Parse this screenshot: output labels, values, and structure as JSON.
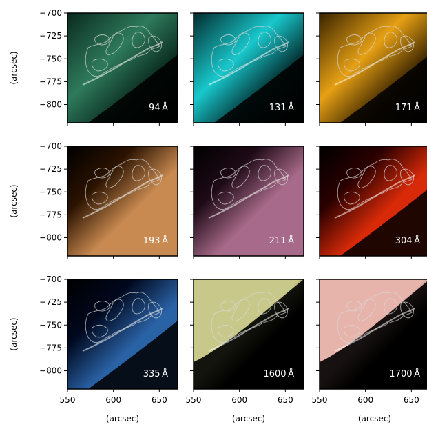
{
  "figure": {
    "y_axis_label": "(arcsec)",
    "x_axis_label": "(arcsec)",
    "y_ticks": [
      "−700",
      "−725",
      "−750",
      "−775",
      "−800"
    ],
    "x_ticks": [
      "550",
      "600",
      "650"
    ],
    "contour_color": "#d8d8d8"
  },
  "panels": [
    {
      "wavelength": "94",
      "unit": "Å",
      "colors": [
        "#0a2a1f",
        "#2e7a5c",
        "#000000"
      ]
    },
    {
      "wavelength": "131",
      "unit": "Å",
      "colors": [
        "#042c2e",
        "#18c8cc",
        "#000000"
      ]
    },
    {
      "wavelength": "171",
      "unit": "Å",
      "colors": [
        "#3a2400",
        "#e6a014",
        "#000000"
      ]
    },
    {
      "wavelength": "193",
      "unit": "Å",
      "colors": [
        "#2a1200",
        "#c88a50",
        "#000000"
      ]
    },
    {
      "wavelength": "211",
      "unit": "Å",
      "colors": [
        "#1e0a16",
        "#a86a8a",
        "#000000"
      ]
    },
    {
      "wavelength": "304",
      "unit": "Å",
      "colors": [
        "#2a0000",
        "#d82a08",
        "#000000"
      ]
    },
    {
      "wavelength": "335",
      "unit": "Å",
      "colors": [
        "#00081e",
        "#2a62a6",
        "#000000"
      ]
    },
    {
      "wavelength": "1600",
      "unit": "Å",
      "colors": [
        "#0a0a00",
        "#c8c88a",
        "#000000"
      ]
    },
    {
      "wavelength": "1700",
      "unit": "Å",
      "colors": [
        "#120806",
        "#e6b4aa",
        "#000000"
      ]
    }
  ]
}
